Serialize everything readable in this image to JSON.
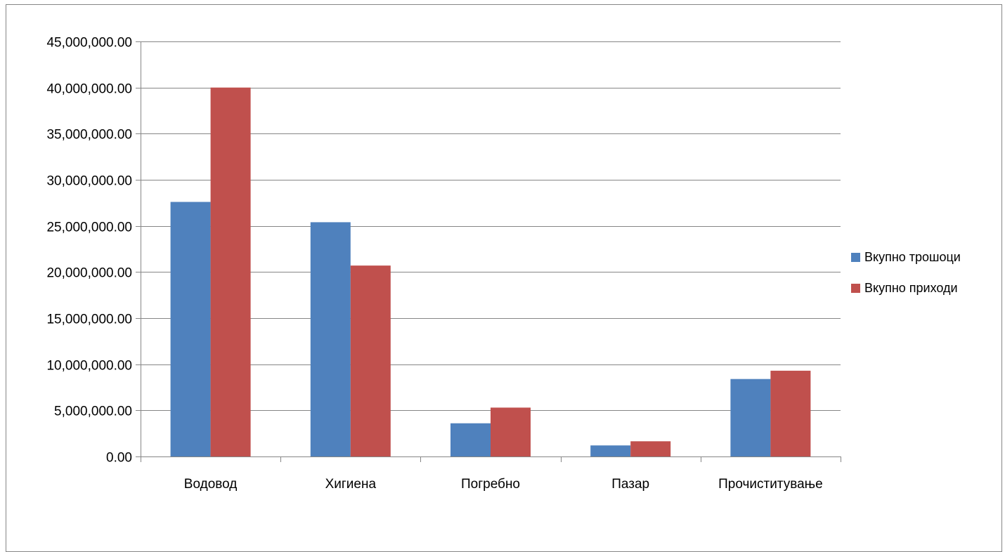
{
  "chart_data": {
    "type": "bar",
    "title": "",
    "xlabel": "",
    "ylabel": "",
    "categories": [
      "Водовод",
      "Хигиена",
      "Погребно",
      "Пазар",
      "Прочиститување"
    ],
    "series": [
      {
        "name": "Вкупно трошоци",
        "color": "#4F81BD",
        "values": [
          27600000,
          25400000,
          3600000,
          1200000,
          8400000
        ]
      },
      {
        "name": "Вкупно приходи",
        "color": "#C0504D",
        "values": [
          40000000,
          20700000,
          5300000,
          1650000,
          9300000
        ]
      }
    ],
    "ylim": [
      0,
      45000000
    ],
    "y_ticks": [
      0,
      5000000,
      10000000,
      15000000,
      20000000,
      25000000,
      30000000,
      35000000,
      40000000,
      45000000
    ],
    "y_tick_labels": [
      "0.00",
      "5,000,000.00",
      "10,000,000.00",
      "15,000,000.00",
      "20,000,000.00",
      "25,000,000.00",
      "30,000,000.00",
      "35,000,000.00",
      "40,000,000.00",
      "45,000,000.00"
    ],
    "grid": true,
    "legend_position": "right",
    "gridline_color": "#868686"
  }
}
